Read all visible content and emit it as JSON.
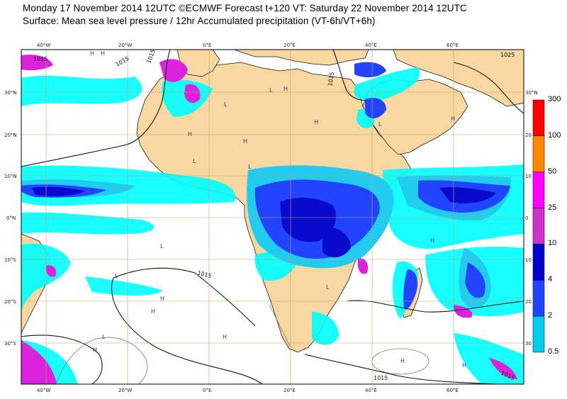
{
  "header": {
    "line1": "Monday 17 November 2014 12UTC ©ECMWF Forecast t+120 VT: Saturday 22 November 2014 12UTC",
    "line2": "Surface: Mean sea level pressure / 12hr Accumulated precipitation (VT-6h/VT+6h)"
  },
  "axes": {
    "lon_top": [
      "40°W",
      "20°W",
      "0°E",
      "20°E",
      "40°E",
      "60°E"
    ],
    "lon_bottom": [
      "40°W",
      "20°W",
      "0°E",
      "20°E",
      "40°E",
      "60°E"
    ],
    "lat_left": [
      "30°N",
      "20°N",
      "10°N",
      "0°N",
      "10°S",
      "20°S",
      "30°S"
    ],
    "lat_right": [
      "30°N",
      "20",
      "10",
      "0",
      "10",
      "20",
      "30"
    ]
  },
  "colorbar": {
    "levels": [
      "300",
      "100",
      "50",
      "25",
      "10",
      "4",
      "2",
      "0.5"
    ],
    "colors": [
      "#ff0000",
      "#ff8800",
      "#ff00ff",
      "#cc33cc",
      "#0000cc",
      "#2244ff",
      "#00ccee",
      "#00ffff"
    ]
  },
  "isobars": [
    "1015",
    "1015",
    "1015",
    "1015",
    "1015",
    "1015",
    "1025",
    "1015"
  ],
  "pressure_centers": [
    "H",
    "H",
    "H",
    "L",
    "L",
    "H",
    "H",
    "L",
    "H",
    "H",
    "L",
    "H",
    "H",
    "L",
    "L",
    "H",
    "H",
    "L",
    "H",
    "L",
    "L",
    "H",
    "H"
  ]
}
